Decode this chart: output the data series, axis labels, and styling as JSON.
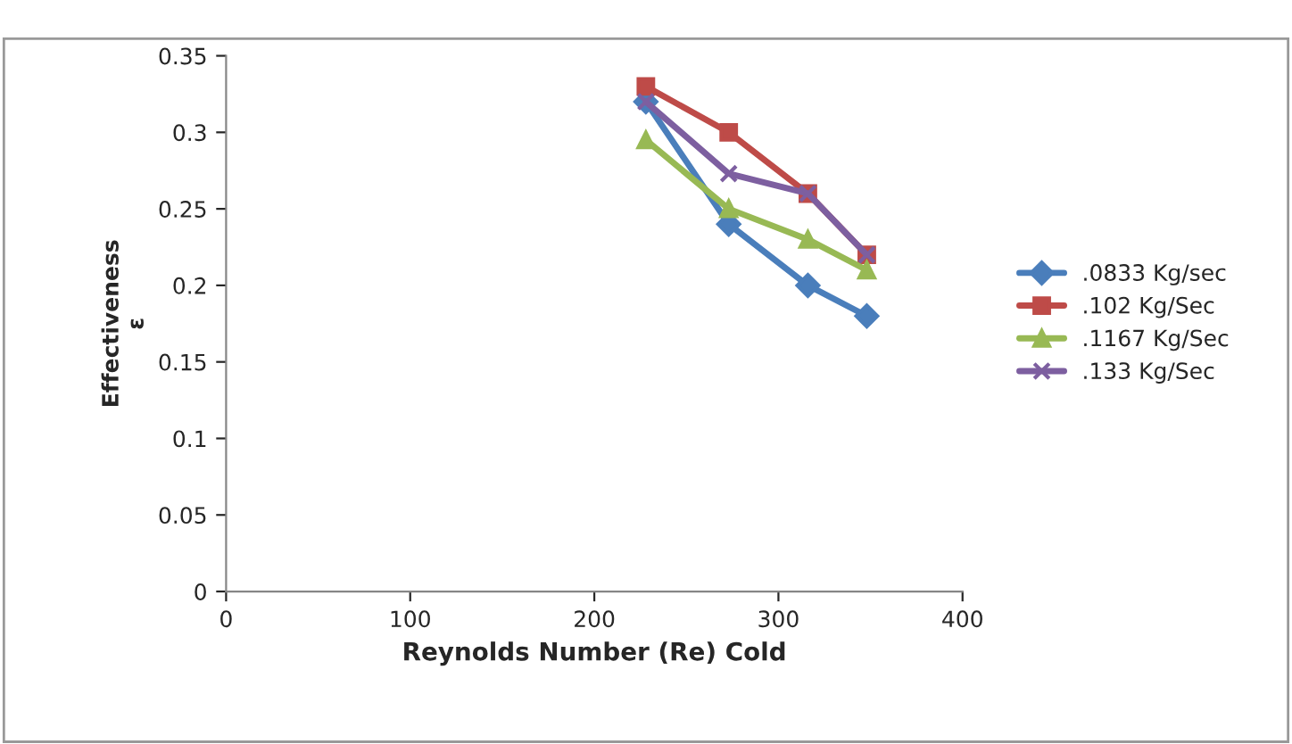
{
  "chart_data": {
    "type": "line",
    "xlabel": "Reynolds Number (Re) Cold",
    "ylabel": "Effectiveness\nε",
    "x": [
      228,
      273,
      316,
      348
    ],
    "series": [
      {
        "name": ".0833 Kg/sec",
        "color": "#4a7ebb",
        "values": [
          0.32,
          0.24,
          0.2,
          0.18
        ],
        "marker": "diamond"
      },
      {
        "name": ".102 Kg/Sec",
        "color": "#be4b48",
        "values": [
          0.33,
          0.3,
          0.26,
          0.22
        ],
        "marker": "square"
      },
      {
        "name": ".1167 Kg/Sec",
        "color": "#98b954",
        "values": [
          0.295,
          0.25,
          0.23,
          0.21
        ],
        "marker": "triangle"
      },
      {
        "name": ".133 Kg/Sec",
        "color": "#7d5fa0",
        "values": [
          0.32,
          0.273,
          0.26,
          0.22
        ],
        "marker": "cross"
      }
    ],
    "xlim": [
      0,
      400
    ],
    "xticks": [
      0,
      100,
      200,
      300,
      400
    ],
    "ylim": [
      0,
      0.35
    ],
    "yticks": [
      {
        "value": 0,
        "label": "0"
      },
      {
        "value": 0.05,
        "label": "0.05"
      },
      {
        "value": 0.1,
        "label": "0.1"
      },
      {
        "value": 0.15,
        "label": "0.15"
      },
      {
        "value": 0.2,
        "label": "0.2"
      },
      {
        "value": 0.25,
        "label": "0.25"
      },
      {
        "value": 0.3,
        "label": "0.3"
      },
      {
        "value": 0.35,
        "label": "0.35"
      }
    ],
    "grid": false,
    "legend": "right",
    "line_style": "solid"
  }
}
